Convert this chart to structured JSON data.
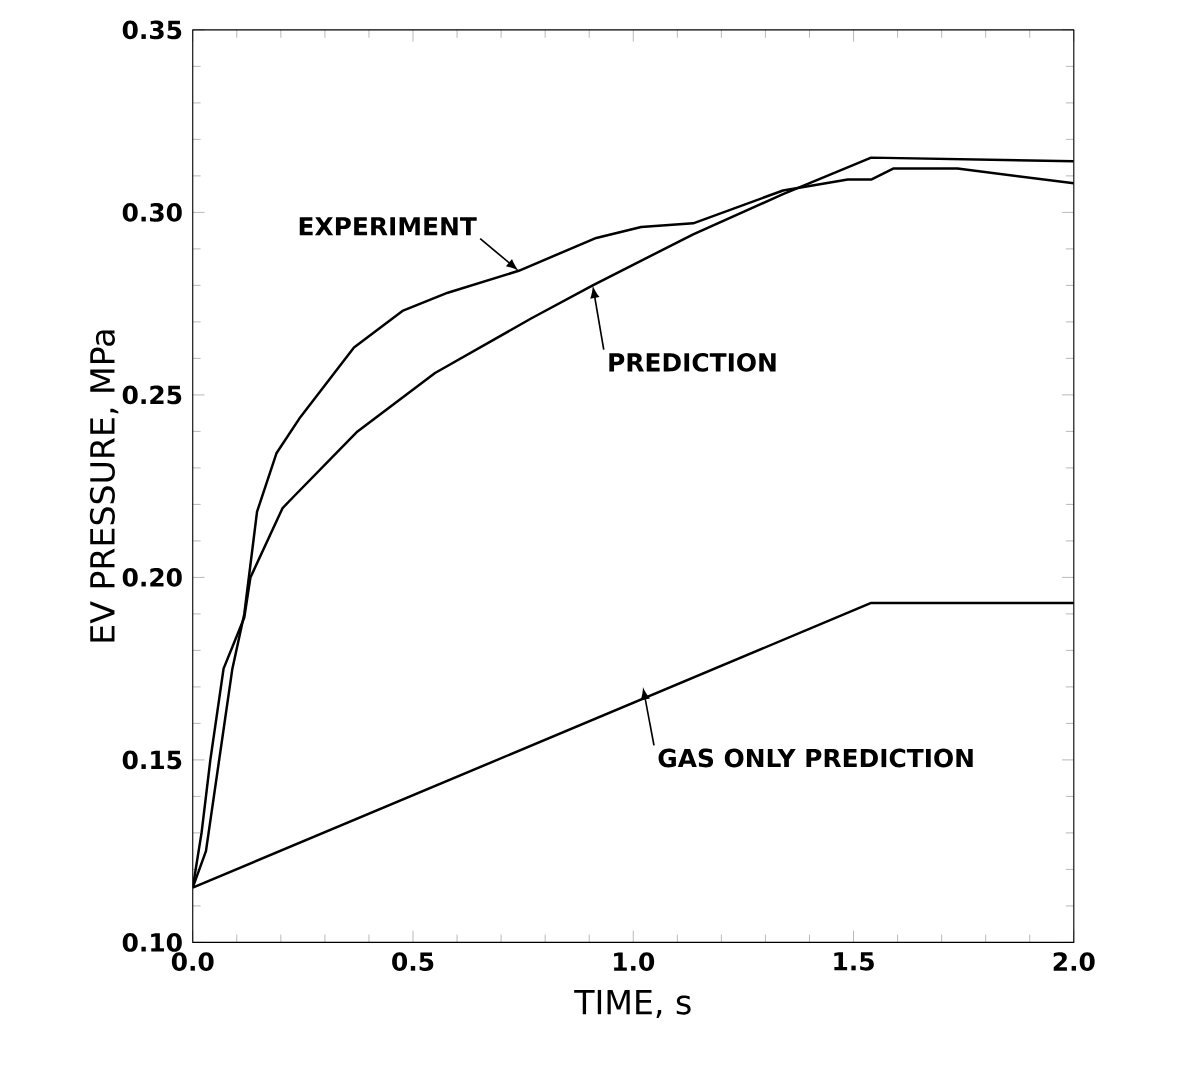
{
  "chart_data": {
    "type": "line",
    "xlabel": "TIME, s",
    "ylabel": "EV PRESSURE, MPa",
    "xlim": [
      0,
      2
    ],
    "ylim": [
      0.1,
      0.35
    ],
    "xticks": [
      {
        "value": 0,
        "label": "0.0"
      },
      0.5,
      {
        "value": 1,
        "label": "1.0"
      },
      1.5,
      {
        "value": 2,
        "label": "2.0"
      }
    ],
    "yticks": [
      {
        "value": 0.1,
        "label": "0.10"
      },
      0.15,
      {
        "value": 0.2,
        "label": "0.20"
      },
      0.25,
      {
        "value": 0.3,
        "label": "0.30"
      },
      0.35
    ],
    "marker": "none",
    "line_style": "solid",
    "series": [
      {
        "color": "#000000",
        "x": [
          0,
          0.03,
          0.06,
          0.09,
          0.117,
          0.146,
          0.19,
          0.242,
          0.366,
          0.476,
          0.579,
          0.74,
          0.916,
          1.018,
          1.136,
          1.34,
          1.487,
          1.54,
          1.59,
          1.736,
          2.0
        ],
        "values": [
          0.115,
          0.125,
          0.15,
          0.175,
          0.19,
          0.218,
          0.234,
          0.2435,
          0.263,
          0.273,
          0.278,
          0.284,
          0.293,
          0.296,
          0.297,
          0.306,
          0.309,
          0.309,
          0.312,
          0.312,
          0.308
        ]
      },
      {
        "color": "#000000",
        "x": [
          0,
          0.02,
          0.04,
          0.07,
          0.117,
          0.131,
          0.204,
          0.22,
          0.374,
          0.55,
          0.769,
          0.908,
          1.136,
          1.34,
          1.54,
          2.0
        ],
        "values": [
          0.115,
          0.13,
          0.15,
          0.175,
          0.189,
          0.2,
          0.219,
          0.221,
          0.24,
          0.256,
          0.271,
          0.28,
          0.294,
          0.305,
          0.315,
          0.314
        ]
      },
      {
        "color": "#000000",
        "x": [
          0,
          1.54,
          2.0
        ],
        "values": [
          0.115,
          0.193,
          0.193
        ]
      }
    ],
    "annotations": [
      {
        "text": "EXPERIMENT",
        "x": 0.74,
        "y": 0.284
      },
      {
        "text": "PREDICTION",
        "x": 0.908,
        "y": 0.28
      },
      {
        "text": "GAS ONLY PREDICTION",
        "x": 1.022,
        "y": 0.17
      }
    ]
  }
}
